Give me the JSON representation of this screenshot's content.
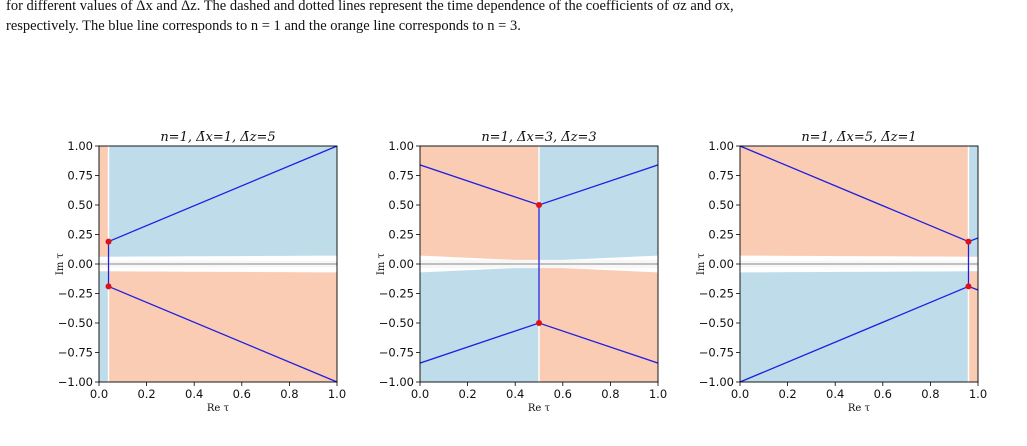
{
  "caption": {
    "line1": "for different values of Δx and Δz. The dashed and dotted lines represent the time dependence of the coefficients of σz and σx,",
    "line2": "respectively. The blue line corresponds to n = 1 and the orange line corresponds to n = 3."
  },
  "chart_data": [
    {
      "type": "heatmap",
      "title": "n=1,  Δ̄x=1,  Δ̄z=5",
      "xlabel": "Re τ",
      "ylabel": "Im τ",
      "xlim": [
        0.0,
        1.0
      ],
      "ylim": [
        -1.0,
        1.0
      ],
      "xticks": [
        "0.0",
        "0.2",
        "0.4",
        "0.6",
        "0.8",
        "1.0"
      ],
      "yticks": [
        "1.00",
        "0.75",
        "0.50",
        "0.25",
        "0.00",
        "−0.25",
        "−0.50",
        "−0.75",
        "−1.00"
      ],
      "points": [
        [
          0.04,
          0.19
        ],
        [
          0.04,
          -0.19
        ]
      ],
      "curves": [
        [
          [
            0.04,
            0.19
          ],
          [
            1.0,
            1.0
          ]
        ],
        [
          [
            0.04,
            -0.19
          ],
          [
            1.0,
            -1.0
          ]
        ],
        [
          [
            0.04,
            0.19
          ],
          [
            0.04,
            -0.19
          ]
        ]
      ],
      "branch_cut_x": 0.04,
      "branch_cut_side": "left"
    },
    {
      "type": "heatmap",
      "title": "n=1,  Δ̄x=3,  Δ̄z=3",
      "xlabel": "Re τ",
      "ylabel": "Im τ",
      "xlim": [
        0.0,
        1.0
      ],
      "ylim": [
        -1.0,
        1.0
      ],
      "xticks": [
        "0.0",
        "0.2",
        "0.4",
        "0.6",
        "0.8",
        "1.0"
      ],
      "yticks": [
        "1.00",
        "0.75",
        "0.50",
        "0.25",
        "0.00",
        "−0.25",
        "−0.50",
        "−0.75",
        "−1.00"
      ],
      "points": [
        [
          0.5,
          0.5
        ],
        [
          0.5,
          -0.5
        ]
      ],
      "curves": [
        [
          [
            0.0,
            0.84
          ],
          [
            0.5,
            0.5
          ],
          [
            1.0,
            0.84
          ]
        ],
        [
          [
            0.0,
            -0.84
          ],
          [
            0.5,
            -0.5
          ],
          [
            1.0,
            -0.84
          ]
        ],
        [
          [
            0.5,
            0.5
          ],
          [
            0.5,
            -0.5
          ]
        ]
      ],
      "branch_cut_x": 0.5,
      "branch_cut_side": "center"
    },
    {
      "type": "heatmap",
      "title": "n=1,  Δ̄x=5,  Δ̄z=1",
      "xlabel": "Re τ",
      "ylabel": "Im τ",
      "xlim": [
        0.0,
        1.0
      ],
      "ylim": [
        -1.0,
        1.0
      ],
      "xticks": [
        "0.0",
        "0.2",
        "0.4",
        "0.6",
        "0.8",
        "1.0"
      ],
      "yticks": [
        "1.00",
        "0.75",
        "0.50",
        "0.25",
        "0.00",
        "−0.25",
        "−0.50",
        "−0.75",
        "−1.00"
      ],
      "points": [
        [
          0.96,
          0.19
        ],
        [
          0.96,
          -0.19
        ]
      ],
      "curves": [
        [
          [
            0.0,
            1.0
          ],
          [
            0.96,
            0.19
          ],
          [
            1.0,
            0.22
          ]
        ],
        [
          [
            0.0,
            -1.0
          ],
          [
            0.96,
            -0.19
          ],
          [
            1.0,
            -0.22
          ]
        ],
        [
          [
            0.96,
            0.19
          ],
          [
            0.96,
            -0.19
          ]
        ]
      ],
      "branch_cut_x": 0.96,
      "branch_cut_side": "right"
    }
  ]
}
